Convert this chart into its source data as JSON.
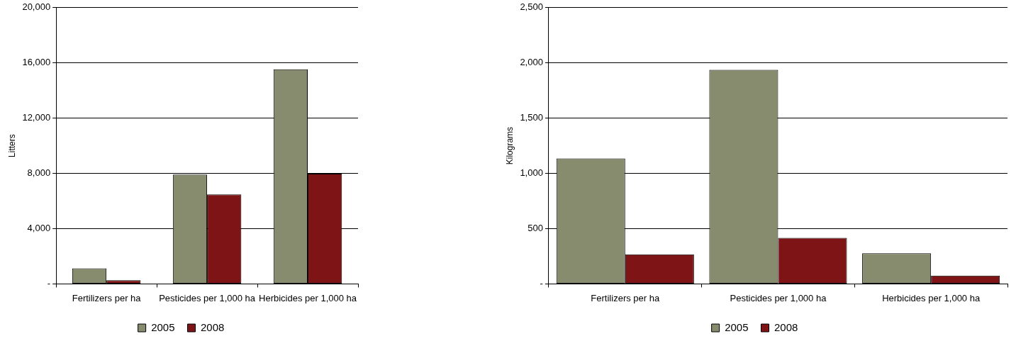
{
  "chart_data": [
    {
      "type": "bar",
      "ylabel": "Litters",
      "categories": [
        "Fertilizers per ha",
        "Pesticides per 1,000 ha",
        "Herbicides per 1,000 ha"
      ],
      "series": [
        {
          "name": "2005",
          "color": "#878c6e",
          "values": [
            1130,
            7910,
            15540
          ]
        },
        {
          "name": "2008",
          "color": "#7f1416",
          "values": [
            270,
            6470,
            7980
          ]
        }
      ],
      "ylim": [
        0,
        20000
      ],
      "yticks": [
        {
          "value": 0,
          "label": "-"
        },
        {
          "value": 4000,
          "label": "4,000"
        },
        {
          "value": 8000,
          "label": "8,000"
        },
        {
          "value": 12000,
          "label": "12,000"
        },
        {
          "value": 16000,
          "label": "16,000"
        },
        {
          "value": 20000,
          "label": "20,000"
        }
      ],
      "grid": "y",
      "legend": "bottom"
    },
    {
      "type": "bar",
      "ylabel": "Kilograms",
      "categories": [
        "Fertilizers per ha",
        "Pesticides per 1,000 ha",
        "Herbicides per 1,000 ha"
      ],
      "series": [
        {
          "name": "2005",
          "color": "#878c6e",
          "values": [
            1135,
            1937,
            277
          ]
        },
        {
          "name": "2008",
          "color": "#7f1416",
          "values": [
            268,
            416,
            75
          ]
        }
      ],
      "ylim": [
        0,
        2500
      ],
      "yticks": [
        {
          "value": 0,
          "label": "-"
        },
        {
          "value": 500,
          "label": "500"
        },
        {
          "value": 1000,
          "label": "1,000"
        },
        {
          "value": 1500,
          "label": "1,500"
        },
        {
          "value": 2000,
          "label": "2,000"
        },
        {
          "value": 2500,
          "label": "2,500"
        }
      ],
      "grid": "y",
      "legend": "bottom"
    }
  ]
}
